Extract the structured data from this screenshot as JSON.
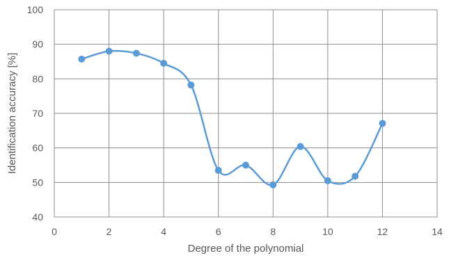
{
  "chart_data": {
    "type": "scatter",
    "title": "",
    "xlabel": "Degree of the polynomial",
    "ylabel": "Identification accuracy [%]",
    "xlim": [
      0,
      14
    ],
    "ylim": [
      40,
      100
    ],
    "x_ticks": [
      0,
      2,
      4,
      6,
      8,
      10,
      12,
      14
    ],
    "y_ticks": [
      40,
      50,
      60,
      70,
      80,
      90,
      100
    ],
    "grid": true,
    "smoothed_line": true,
    "markers": true,
    "color": "#5b9bd5",
    "series": [
      {
        "x": [
          1,
          2,
          3,
          4,
          5,
          6,
          7,
          8,
          9,
          10,
          11,
          12
        ],
        "y": [
          85.7,
          88.0,
          87.4,
          84.5,
          78.2,
          53.5,
          55.0,
          49.3,
          60.4,
          50.5,
          51.8,
          67.1
        ]
      }
    ]
  }
}
